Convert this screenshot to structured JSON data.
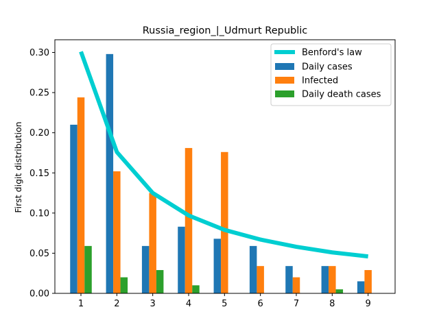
{
  "chart_data": {
    "type": "bar",
    "title": "Russia_region_|_Udmurt Republic",
    "xlabel": "",
    "ylabel": "First digit distribution",
    "categories": [
      "1",
      "2",
      "3",
      "4",
      "5",
      "6",
      "7",
      "8",
      "9"
    ],
    "ylim": [
      0,
      0.3
    ],
    "yticks": [
      "0.00",
      "0.05",
      "0.10",
      "0.15",
      "0.20",
      "0.25",
      "0.30"
    ],
    "line": {
      "name": "Benford's law",
      "color": "#00CED1",
      "values": [
        0.301,
        0.176,
        0.125,
        0.097,
        0.079,
        0.067,
        0.058,
        0.051,
        0.046
      ]
    },
    "series": [
      {
        "name": "Daily cases",
        "color": "#1f77b4",
        "values": [
          0.21,
          0.298,
          0.059,
          0.083,
          0.068,
          0.059,
          0.034,
          0.034,
          0.015
        ]
      },
      {
        "name": "Infected",
        "color": "#ff7f0e",
        "values": [
          0.244,
          0.152,
          0.125,
          0.181,
          0.176,
          0.034,
          0.02,
          0.034,
          0.029
        ]
      },
      {
        "name": "Daily death cases",
        "color": "#2ca02c",
        "values": [
          0.059,
          0.02,
          0.029,
          0.01,
          0.0,
          0.0,
          0.0,
          0.005,
          0.0
        ]
      }
    ],
    "grid": false,
    "legend_position": "top-right"
  }
}
